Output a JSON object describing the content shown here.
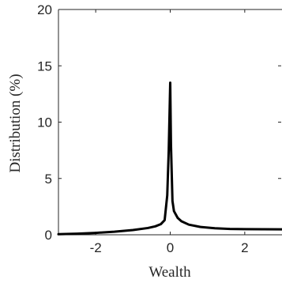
{
  "chart_data": {
    "type": "line",
    "xlabel": "Wealth",
    "ylabel": "Distribution (%)",
    "xlim": [
      -3,
      3
    ],
    "ylim": [
      0,
      20
    ],
    "xticks": [
      -2,
      0,
      2
    ],
    "yticks": [
      0,
      5,
      10,
      15,
      20
    ],
    "grid": false,
    "colors": {
      "line": "#000000",
      "axis": "#262626"
    },
    "series": [
      {
        "x": [
          -3.0,
          -2.5,
          -2.0,
          -1.5,
          -1.0,
          -0.6,
          -0.4,
          -0.25,
          -0.15,
          -0.08,
          -0.04,
          -0.01,
          0.0,
          0.02,
          0.06,
          0.1,
          0.2,
          0.3,
          0.5,
          0.8,
          1.2,
          1.6,
          2.0,
          2.5,
          3.0
        ],
        "y": [
          0.05,
          0.1,
          0.17,
          0.27,
          0.42,
          0.6,
          0.75,
          0.95,
          1.3,
          3.5,
          7.5,
          12.0,
          13.5,
          8.0,
          3.0,
          2.1,
          1.5,
          1.2,
          0.9,
          0.7,
          0.58,
          0.52,
          0.5,
          0.49,
          0.48
        ]
      }
    ]
  }
}
